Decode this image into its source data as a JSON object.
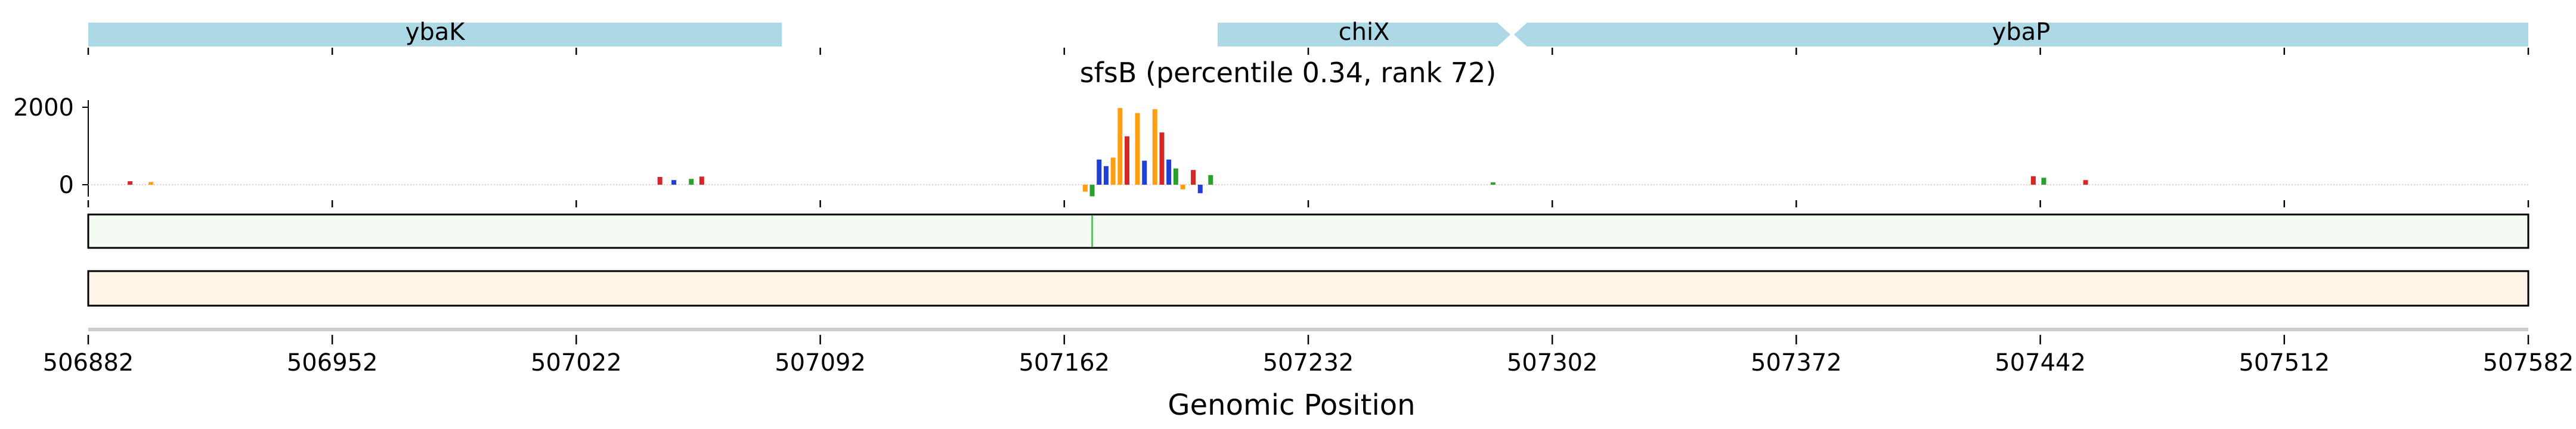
{
  "chart_data": {
    "type": "bar",
    "title": "sfsB (percentile 0.34, rank 72)",
    "xlabel": "Genomic Position",
    "ylabel": "",
    "xlim": [
      506882,
      507582
    ],
    "x_ticks": [
      506882,
      506952,
      507022,
      507092,
      507162,
      507232,
      507302,
      507372,
      507442,
      507512,
      507582
    ],
    "x_tick_labels": [
      "506882",
      "506952",
      "507022",
      "507092",
      "507162",
      "507232",
      "507302",
      "507372",
      "507442",
      "507512",
      "507582"
    ],
    "y_ticks": [
      0,
      2000
    ],
    "y_tick_labels": [
      "0",
      "2000"
    ],
    "ylim": [
      -400,
      2150
    ],
    "grid": false,
    "legend": "none",
    "genes": [
      {
        "name": "ybaK",
        "start": 506882,
        "end": 507081,
        "strand": "+",
        "shape": "box"
      },
      {
        "name": "chiX",
        "start": 507206,
        "end": 507290,
        "strand": "+",
        "shape": "arrow"
      },
      {
        "name": "ybaP",
        "start": 507291,
        "end": 507582,
        "strand": "-",
        "shape": "arrow"
      }
    ],
    "gene_ticks": [
      506882,
      506952,
      507022,
      507092,
      507162,
      507232,
      507302,
      507372,
      507442,
      507512,
      507582
    ],
    "contribution_peaks": [
      {
        "x": 507168,
        "y": -180,
        "base": "G"
      },
      {
        "x": 507170,
        "y": -300,
        "base": "A"
      },
      {
        "x": 507172,
        "y": 650,
        "base": "C"
      },
      {
        "x": 507174,
        "y": 480,
        "base": "C"
      },
      {
        "x": 507176,
        "y": 700,
        "base": "G"
      },
      {
        "x": 507178,
        "y": 1980,
        "base": "G"
      },
      {
        "x": 507180,
        "y": 1250,
        "base": "T"
      },
      {
        "x": 507183,
        "y": 1850,
        "base": "G"
      },
      {
        "x": 507185,
        "y": 620,
        "base": "C"
      },
      {
        "x": 507188,
        "y": 1950,
        "base": "G"
      },
      {
        "x": 507190,
        "y": 1350,
        "base": "T"
      },
      {
        "x": 507192,
        "y": 650,
        "base": "C"
      },
      {
        "x": 507194,
        "y": 420,
        "base": "A"
      },
      {
        "x": 507196,
        "y": -120,
        "base": "G"
      },
      {
        "x": 507199,
        "y": 380,
        "base": "T"
      },
      {
        "x": 507201,
        "y": -220,
        "base": "C"
      },
      {
        "x": 507204,
        "y": 250,
        "base": "A"
      },
      {
        "x": 507046,
        "y": 200,
        "base": "T"
      },
      {
        "x": 507050,
        "y": 120,
        "base": "C"
      },
      {
        "x": 507055,
        "y": 150,
        "base": "A"
      },
      {
        "x": 507058,
        "y": 210,
        "base": "T"
      },
      {
        "x": 507440,
        "y": 220,
        "base": "T"
      },
      {
        "x": 507443,
        "y": 180,
        "base": "A"
      },
      {
        "x": 507455,
        "y": 120,
        "base": "T"
      },
      {
        "x": 506894,
        "y": 90,
        "base": "T"
      },
      {
        "x": 506900,
        "y": 70,
        "base": "G"
      },
      {
        "x": 507285,
        "y": 60,
        "base": "A"
      }
    ],
    "track1_marks": [
      {
        "x": 507170,
        "color": "#66bb66"
      }
    ],
    "colors": {
      "gene_fill": "#add8e6",
      "A": "#2ca02c",
      "C": "#1f3fd6",
      "G": "#ff9f0f",
      "T": "#d62728",
      "track1_fill": "#f4fbf2",
      "track2_fill": "#fff4e8"
    }
  }
}
